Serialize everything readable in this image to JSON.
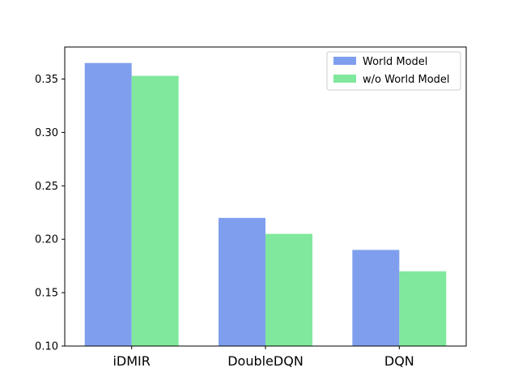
{
  "chart_data": {
    "type": "bar",
    "categories": [
      "iDMIR",
      "DoubleDQN",
      "DQN"
    ],
    "series": [
      {
        "name": "World Model",
        "values": [
          0.365,
          0.22,
          0.19
        ],
        "color": "#7f9fee"
      },
      {
        "name": "w/o World Model",
        "values": [
          0.353,
          0.205,
          0.17
        ],
        "color": "#80e89c"
      }
    ],
    "ylim": [
      0.1,
      0.38
    ],
    "yticks": [
      0.1,
      0.15,
      0.2,
      0.25,
      0.3,
      0.35
    ],
    "ytick_labels": [
      "0.10",
      "0.15",
      "0.20",
      "0.25",
      "0.30",
      "0.35"
    ],
    "legend_position": "top-right",
    "grid": false
  }
}
